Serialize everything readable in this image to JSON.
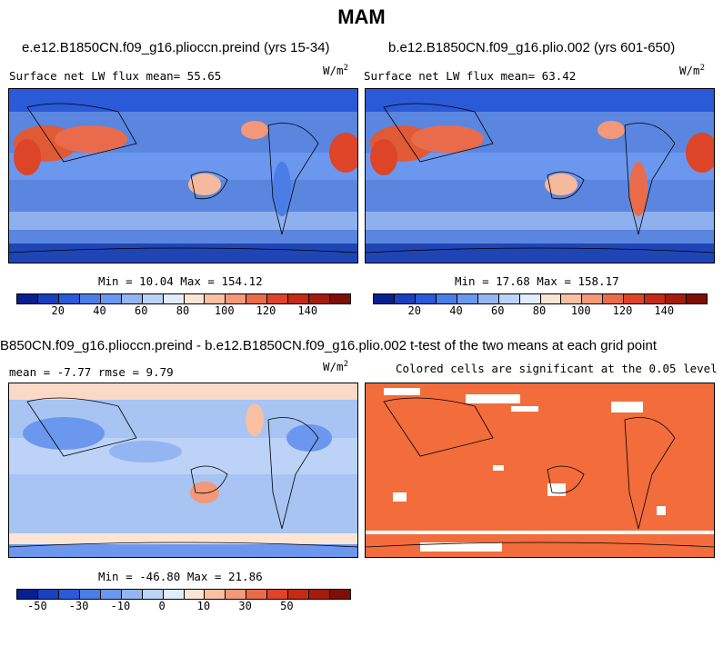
{
  "main_title": "MAM",
  "panels": {
    "p1": {
      "title": "e.e12.B1850CN.f09_g16.plioccn.preind (yrs 15-34)",
      "left": "Surface net LW flux mean=  55.65",
      "units": "W/m",
      "units_sup": "2",
      "minmax": "Min =  10.04 Max = 154.12"
    },
    "p2": {
      "title": "b.e12.B1850CN.f09_g16.plio.002 (yrs 601-650)",
      "left": "Surface net LW flux mean=  63.42",
      "units": "W/m",
      "units_sup": "2",
      "minmax": "Min =  17.68 Max = 158.17"
    },
    "p3": {
      "title": "B850CN.f09_g16.plioccn.preind - b.e12.B1850CN.f09_g16.plio.002",
      "left": "mean =  -7.77    rmse =   9.79",
      "units": "W/m",
      "units_sup": "2",
      "minmax": "Min = -46.80 Max =  21.86"
    },
    "p4": {
      "title": "t-test of the two means at each grid point",
      "left": "Colored cells are significant at the 0.05 level"
    }
  },
  "colorbar_abs": {
    "colors": [
      "#0a1f8f",
      "#1a3fbf",
      "#2a5ad8",
      "#4a7de6",
      "#6b98ee",
      "#93b6f3",
      "#bcd2f7",
      "#e2ecfb",
      "#fde5d6",
      "#f9c0a3",
      "#f39878",
      "#ea6b4c",
      "#dd4428",
      "#c42a14",
      "#a51c0c",
      "#7f0f06"
    ],
    "ticks": [
      "20",
      "40",
      "60",
      "80",
      "100",
      "120",
      "140"
    ]
  },
  "colorbar_diff": {
    "colors": [
      "#0a1f8f",
      "#1a3fbf",
      "#2a5ad8",
      "#4a7de6",
      "#6b98ee",
      "#93b6f3",
      "#bcd2f7",
      "#e2ecfb",
      "#fde5d6",
      "#f9c0a3",
      "#f39878",
      "#ea6b4c",
      "#dd4428",
      "#c42a14",
      "#a51c0c",
      "#7f0f06"
    ],
    "ticks": [
      "-50",
      "-30",
      "-10",
      "0",
      "10",
      "30",
      "50"
    ]
  },
  "map_colors": {
    "ocean_abs": "#5a86e0",
    "ocean_band": "#8fb0ee",
    "desert_hot": "#e05a36",
    "warm": "#f5b99c",
    "cold": "#1f45b5",
    "ocean_diff": "#a8c4f2",
    "diff_pos": "#fbd9c6",
    "signif": "#f26c3c"
  }
}
